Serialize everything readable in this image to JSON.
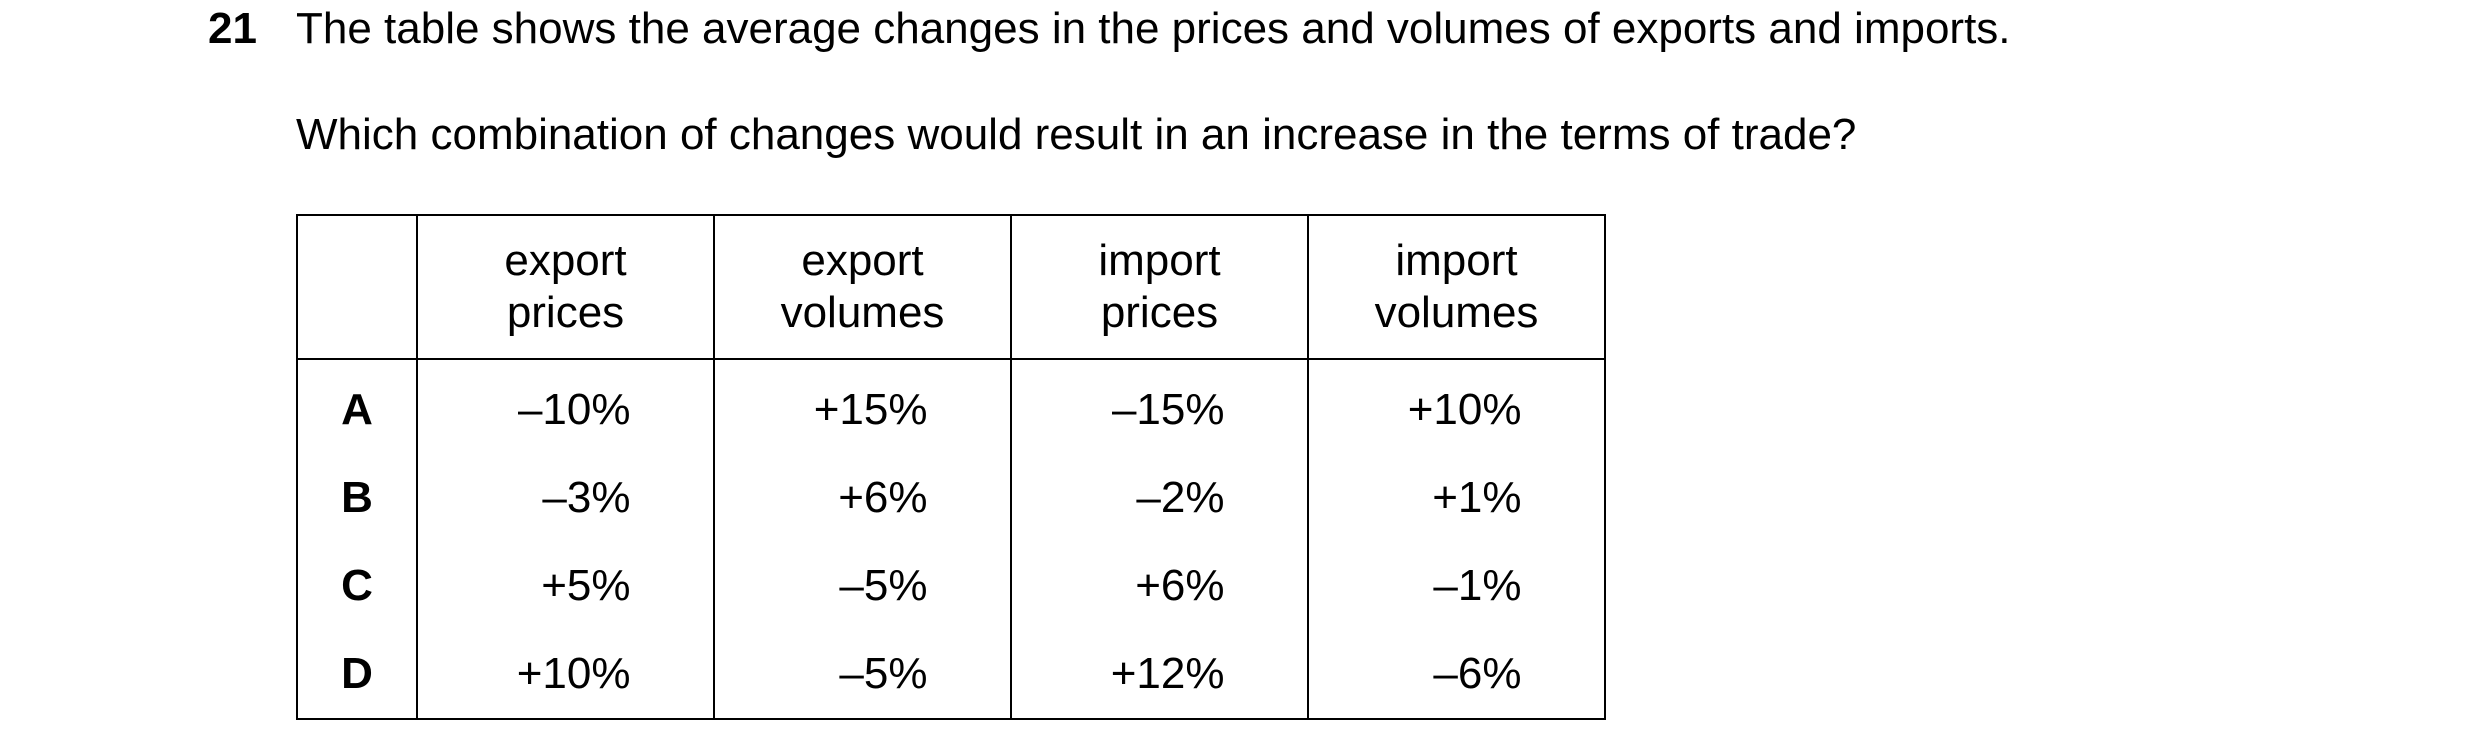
{
  "question": {
    "number": "21",
    "stem": "The table shows the average changes in the prices and volumes of exports and imports.",
    "prompt": "Which combination of changes would result in an increase in the terms of trade?"
  },
  "table": {
    "headers": [
      [
        "export",
        "prices"
      ],
      [
        "export",
        "volumes"
      ],
      [
        "import",
        "prices"
      ],
      [
        "import",
        "volumes"
      ]
    ],
    "rows": [
      {
        "key": "A",
        "values": [
          "–10%",
          "+15%",
          "–15%",
          "+10%"
        ]
      },
      {
        "key": "B",
        "values": [
          "–3%",
          "+6%",
          "–2%",
          "+1%"
        ]
      },
      {
        "key": "C",
        "values": [
          "+5%",
          "–5%",
          "+6%",
          "–1%"
        ]
      },
      {
        "key": "D",
        "values": [
          "+10%",
          "–5%",
          "+12%",
          "–6%"
        ]
      }
    ]
  }
}
